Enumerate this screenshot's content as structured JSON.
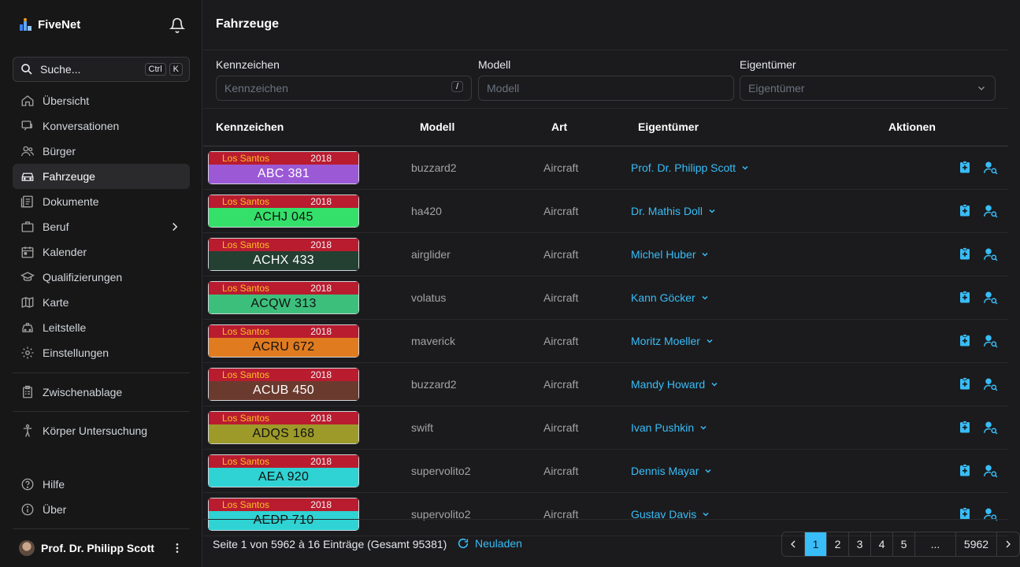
{
  "app": {
    "name": "FiveNet"
  },
  "sidebar": {
    "search_placeholder": "Suche...",
    "kbd1": "Ctrl",
    "kbd2": "K",
    "items": [
      {
        "label": "Übersicht",
        "icon": "home-icon"
      },
      {
        "label": "Konversationen",
        "icon": "chat-icon"
      },
      {
        "label": "Bürger",
        "icon": "users-icon"
      },
      {
        "label": "Fahrzeuge",
        "icon": "car-icon",
        "active": true
      },
      {
        "label": "Dokumente",
        "icon": "document-icon"
      },
      {
        "label": "Beruf",
        "icon": "briefcase-icon"
      },
      {
        "label": "Kalender",
        "icon": "calendar-icon"
      },
      {
        "label": "Qualifizierungen",
        "icon": "graduation-icon"
      },
      {
        "label": "Karte",
        "icon": "map-icon"
      },
      {
        "label": "Leitstelle",
        "icon": "taxi-icon"
      },
      {
        "label": "Einstellungen",
        "icon": "gear-icon"
      }
    ],
    "clipboard": "Zwischenablage",
    "body_exam": "Körper Untersuchung",
    "help": "Hilfe",
    "about": "Über",
    "user_name": "Prof. Dr. Philipp Scott"
  },
  "page": {
    "title": "Fahrzeuge"
  },
  "filters": {
    "plate_label": "Kennzeichen",
    "plate_placeholder": "Kennzeichen",
    "plate_shortcut": "/",
    "model_label": "Modell",
    "model_placeholder": "Modell",
    "owner_label": "Eigentümer",
    "owner_placeholder": "Eigentümer"
  },
  "table": {
    "headers": {
      "plate": "Kennzeichen",
      "model": "Modell",
      "type": "Art",
      "owner": "Eigentümer",
      "actions": "Aktionen"
    },
    "rows": [
      {
        "region": "Los Santos",
        "year": "2018",
        "plate": "ABC 381",
        "color": "#9b59d6",
        "text": "#ffffff",
        "model": "buzzard2",
        "type": "Aircraft",
        "owner": "Prof. Dr. Philipp Scott"
      },
      {
        "region": "Los Santos",
        "year": "2018",
        "plate": "ACHJ 045",
        "color": "#34e06a",
        "text": "#111111",
        "model": "ha420",
        "type": "Aircraft",
        "owner": "Dr. Mathis Doll"
      },
      {
        "region": "Los Santos",
        "year": "2018",
        "plate": "ACHX 433",
        "color": "#244032",
        "text": "#ffffff",
        "model": "airglider",
        "type": "Aircraft",
        "owner": "Michel Huber"
      },
      {
        "region": "Los Santos",
        "year": "2018",
        "plate": "ACQW 313",
        "color": "#3dbf7c",
        "text": "#111111",
        "model": "volatus",
        "type": "Aircraft",
        "owner": "Kann Göcker"
      },
      {
        "region": "Los Santos",
        "year": "2018",
        "plate": "ACRU 672",
        "color": "#e07b1f",
        "text": "#111111",
        "model": "maverick",
        "type": "Aircraft",
        "owner": "Moritz Moeller"
      },
      {
        "region": "Los Santos",
        "year": "2018",
        "plate": "ACUB 450",
        "color": "#6b3a2e",
        "text": "#ffffff",
        "model": "buzzard2",
        "type": "Aircraft",
        "owner": "Mandy Howard"
      },
      {
        "region": "Los Santos",
        "year": "2018",
        "plate": "ADQS 168",
        "color": "#9d9a2a",
        "text": "#111111",
        "model": "swift",
        "type": "Aircraft",
        "owner": "Ivan Pushkin"
      },
      {
        "region": "Los Santos",
        "year": "2018",
        "plate": "AEA 920",
        "color": "#2fd3d3",
        "text": "#111111",
        "model": "supervolito2",
        "type": "Aircraft",
        "owner": "Dennis Mayar"
      },
      {
        "region": "Los Santos",
        "year": "2018",
        "plate": "AEDP 710",
        "color": "#2fd3d3",
        "text": "#111111",
        "model": "supervolito2",
        "type": "Aircraft",
        "owner": "Gustav Davis"
      }
    ]
  },
  "footer": {
    "summary": "Seite 1 von 5962 à 16 Einträge (Gesamt 95381)",
    "reload": "Neuladen",
    "pages": [
      "1",
      "2",
      "3",
      "4",
      "5",
      "...",
      "5962"
    ],
    "current_page": "1"
  },
  "colors": {
    "accent": "#38bdf8",
    "background": "#1b1b1d",
    "sidebar": "#171717",
    "plate_header": "#b91c2f"
  }
}
